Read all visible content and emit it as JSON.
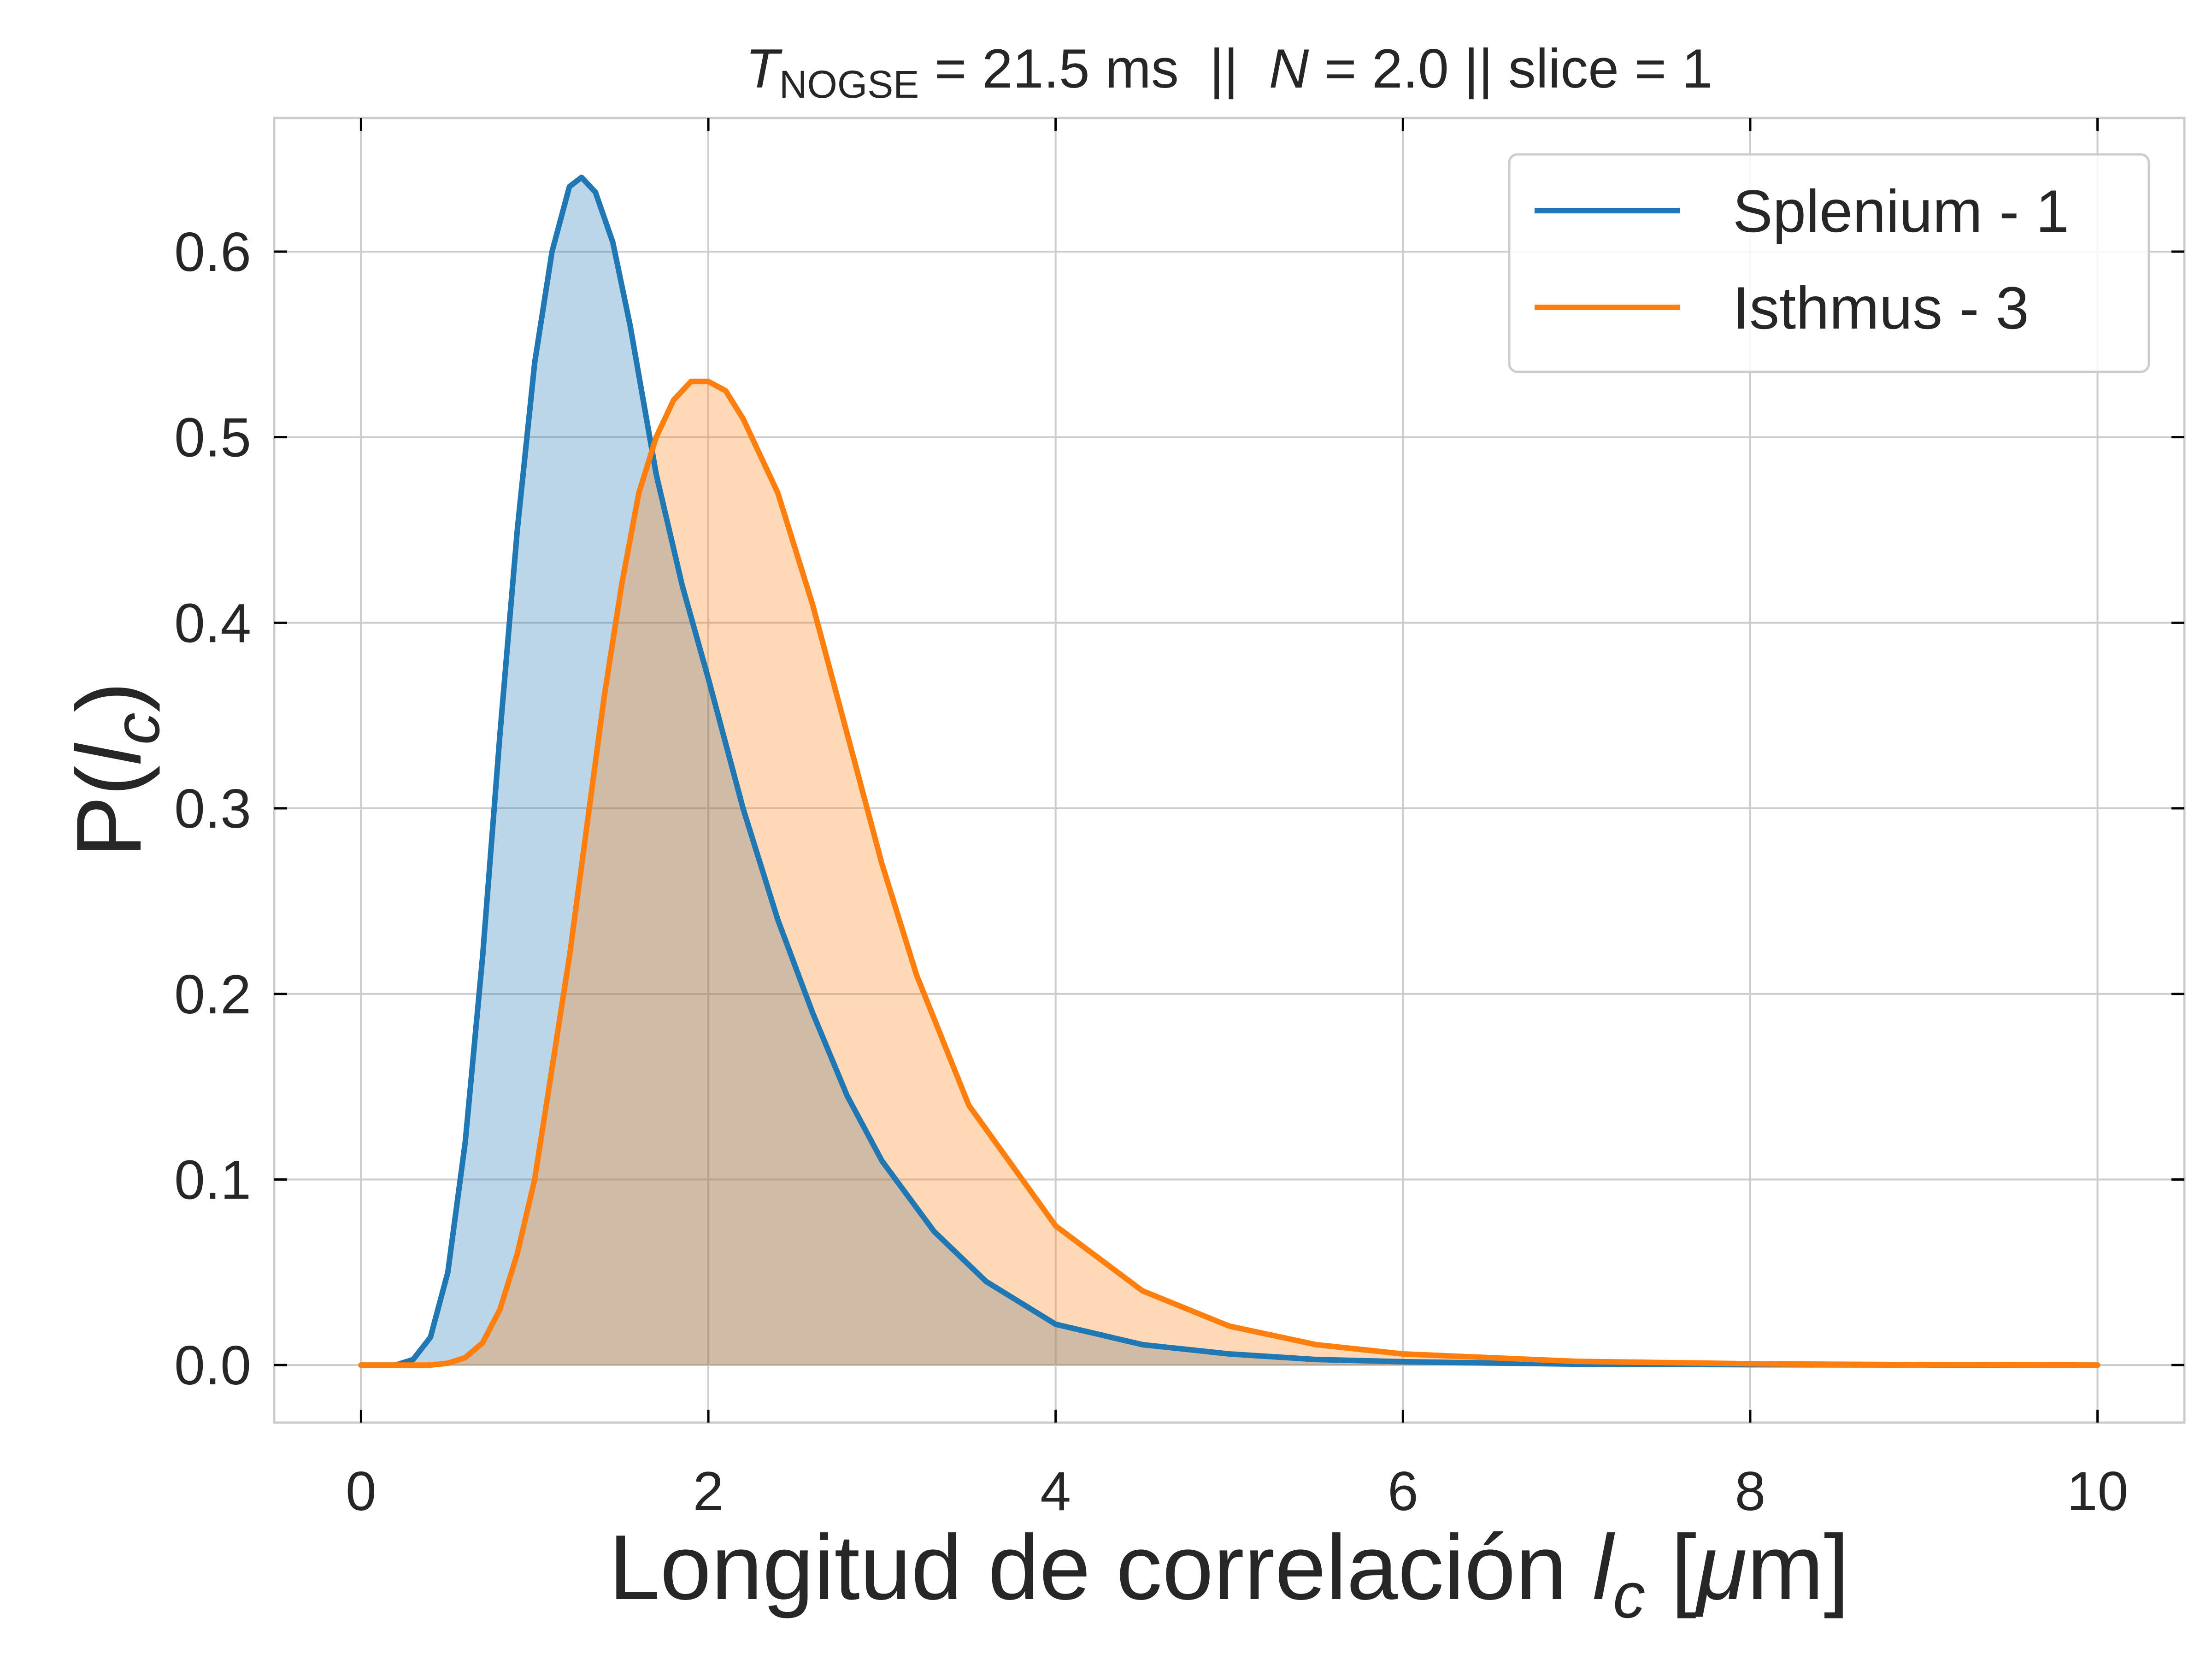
{
  "chart_data": {
    "type": "area",
    "title": {
      "t_symbol": "T",
      "t_subscript": "NOGSE",
      "t_value": " = 21.5 ms  ||  ",
      "n_symbol": "N",
      "n_value": " = 2.0 || slice = 1"
    },
    "xlabel": {
      "text": "Longitud de correlación ",
      "var": "l",
      "var_sub": "c",
      "unit_open": " [",
      "unit_mu": "μ",
      "unit_rest": "m]"
    },
    "ylabel": {
      "prefix": "P(",
      "var": "l",
      "var_sub": "c",
      "suffix": ")"
    },
    "xlim": [
      -0.5,
      10.5
    ],
    "ylim": [
      -0.031,
      0.672
    ],
    "xticks": [
      0,
      2,
      4,
      6,
      8,
      10
    ],
    "xtick_labels": [
      "0",
      "2",
      "4",
      "6",
      "8",
      "10"
    ],
    "yticks": [
      0.0,
      0.1,
      0.2,
      0.3,
      0.4,
      0.5,
      0.6
    ],
    "ytick_labels": [
      "0.0",
      "0.1",
      "0.2",
      "0.3",
      "0.4",
      "0.5",
      "0.6"
    ],
    "grid": true,
    "legend_position": "top-right",
    "series": [
      {
        "name": "Splenium - 1",
        "color": "#1f77b4",
        "fill_color": "#1f77b4",
        "x": [
          0,
          0.2,
          0.3,
          0.4,
          0.5,
          0.6,
          0.7,
          0.8,
          0.9,
          1.0,
          1.1,
          1.2,
          1.27,
          1.35,
          1.45,
          1.55,
          1.7,
          1.85,
          2.0,
          2.2,
          2.4,
          2.6,
          2.8,
          3.0,
          3.3,
          3.6,
          4.0,
          4.5,
          5.0,
          5.5,
          6.0,
          7.0,
          8.0,
          9.0,
          10.0
        ],
        "y": [
          0.0,
          0.0,
          0.003,
          0.015,
          0.05,
          0.12,
          0.22,
          0.34,
          0.45,
          0.54,
          0.6,
          0.635,
          0.64,
          0.632,
          0.605,
          0.56,
          0.48,
          0.42,
          0.37,
          0.3,
          0.24,
          0.19,
          0.145,
          0.11,
          0.072,
          0.045,
          0.022,
          0.011,
          0.006,
          0.003,
          0.0018,
          0.0005,
          0.0002,
          0.0001,
          0.0
        ]
      },
      {
        "name": "Isthmus - 3",
        "color": "#ff7f0e",
        "fill_color": "#ff7f0e",
        "x": [
          0,
          0.4,
          0.5,
          0.6,
          0.7,
          0.8,
          0.9,
          1.0,
          1.1,
          1.2,
          1.3,
          1.4,
          1.5,
          1.6,
          1.7,
          1.8,
          1.9,
          2.0,
          2.1,
          2.2,
          2.4,
          2.6,
          2.8,
          3.0,
          3.2,
          3.5,
          4.0,
          4.5,
          5.0,
          5.5,
          6.0,
          7.0,
          8.0,
          9.0,
          10.0
        ],
        "y": [
          0.0,
          0.0,
          0.001,
          0.004,
          0.012,
          0.03,
          0.06,
          0.1,
          0.16,
          0.22,
          0.29,
          0.36,
          0.42,
          0.47,
          0.5,
          0.52,
          0.53,
          0.53,
          0.525,
          0.51,
          0.47,
          0.41,
          0.34,
          0.27,
          0.21,
          0.14,
          0.075,
          0.04,
          0.021,
          0.011,
          0.006,
          0.002,
          0.0007,
          0.0002,
          0.0
        ]
      }
    ]
  }
}
